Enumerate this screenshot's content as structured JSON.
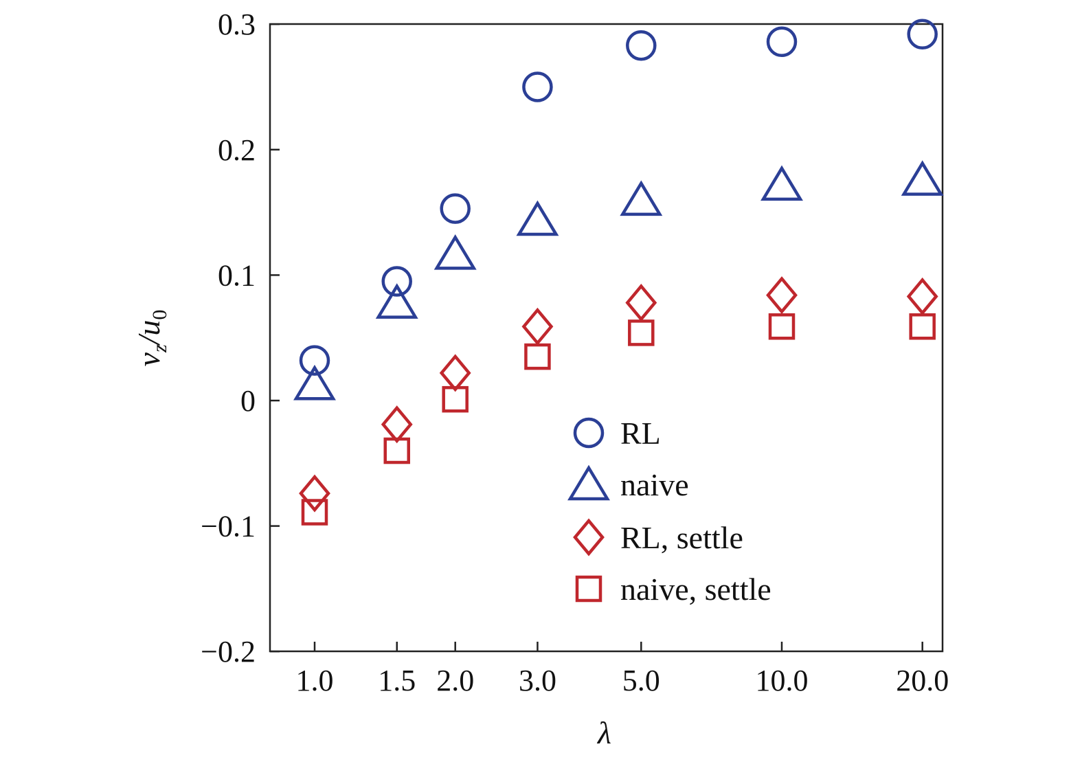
{
  "chart_data": {
    "type": "scatter",
    "title": "",
    "xlabel": "λ",
    "ylabel_main": "v",
    "ylabel_sub": "z",
    "ylabel_den": "u",
    "ylabel_den_sub": "0",
    "x_scale": "log",
    "x": [
      1.0,
      1.5,
      2.0,
      3.0,
      5.0,
      10.0,
      20.0
    ],
    "x_tick_labels": [
      "1.0",
      "1.5",
      "2.0",
      "3.0",
      "5.0",
      "10.0",
      "20.0"
    ],
    "ylim": [
      -0.2,
      0.3
    ],
    "y_ticks": [
      -0.2,
      -0.1,
      0,
      0.1,
      0.2,
      0.3
    ],
    "y_tick_labels": [
      "−0.2",
      "−0.1",
      "0",
      "0.1",
      "0.2",
      "0.3"
    ],
    "grid": false,
    "legend_position": "center-right",
    "series": [
      {
        "name": "RL",
        "marker": "circle",
        "color": "#2b3f96",
        "values": [
          0.032,
          0.095,
          0.153,
          0.25,
          0.283,
          0.286,
          0.292
        ]
      },
      {
        "name": "naive",
        "marker": "triangle",
        "color": "#2b3f96",
        "values": [
          0.013,
          0.078,
          0.117,
          0.144,
          0.16,
          0.172,
          0.176
        ]
      },
      {
        "name": "RL, settle",
        "marker": "diamond",
        "color": "#c0272d",
        "values": [
          -0.074,
          -0.019,
          0.022,
          0.059,
          0.078,
          0.084,
          0.083
        ]
      },
      {
        "name": "naive, settle",
        "marker": "square",
        "color": "#c0272d",
        "values": [
          -0.089,
          -0.04,
          0.001,
          0.035,
          0.054,
          0.059,
          0.059
        ]
      }
    ]
  }
}
